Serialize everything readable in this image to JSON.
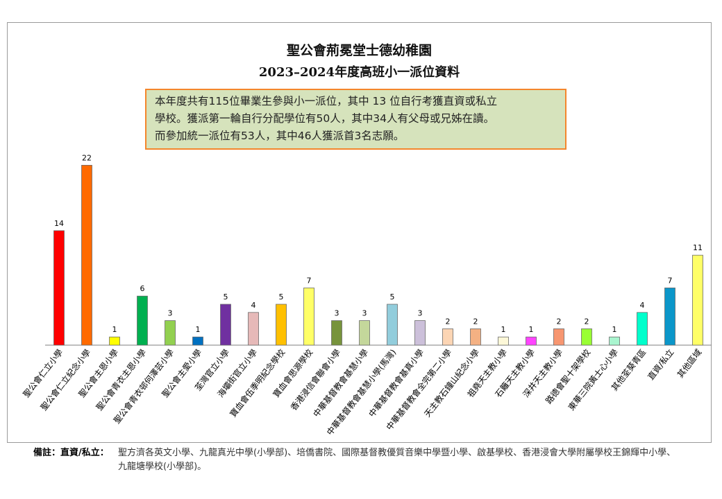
{
  "title_line1": "聖公會荊冕堂士德幼稚園",
  "title_line2": "2023–2024年度高班小一派位資料",
  "info_box": {
    "line1": "本年度共有115位畢業生參與小一派位，其中 13 位自行考獲直資或私立",
    "line2": "學校。獲派第一輪自行分配學位有50人，其中34人有父母或兄姊在讀。",
    "line3": "而參加統一派位有53人，其中46人獲派首3名志願。"
  },
  "note": {
    "label": "備註：直資/私立：",
    "line1": "聖方濟各英文小學、九龍真光中學(小學部)、培僑書院、國際基督教優質音樂中學暨小學、啟基學校、香港浸會大學附屬學校王錦輝中小學、",
    "line2": "九龍塘學校(小學部)。"
  },
  "chart_data": {
    "type": "bar",
    "categories": [
      "聖公會仁立小學",
      "聖公會仁立紀念小學",
      "聖公會主恩小學",
      "聖公會青衣主恩小學",
      "聖公會青衣邨何澤芸小學",
      "聖公會主愛小學",
      "荃灣官立小學",
      "海壩街官立小學",
      "寶血會伍季明紀念學校",
      "寶血會思源學校",
      "香港浸信會聯會小學",
      "中華基督教會基慧小學",
      "中華基督教會基慧小學(馬灣)",
      "中華基督教會基真小學",
      "中華基督教會全完第二小學",
      "天主教石鐘山紀念小學",
      "祖堯天主教小學",
      "石籬天主教小學",
      "深井天主教小學",
      "路德會聖十架學校",
      "東華三院黃士心小學",
      "其他荃葵青區",
      "直資/私立",
      "其他區域"
    ],
    "values": [
      14,
      22,
      1,
      6,
      3,
      1,
      5,
      4,
      5,
      7,
      3,
      3,
      5,
      3,
      2,
      2,
      1,
      1,
      2,
      2,
      1,
      4,
      7,
      11
    ],
    "colors": [
      "#ff0000",
      "#ff6a00",
      "#ffff00",
      "#00b050",
      "#92d050",
      "#0070c0",
      "#7030a0",
      "#e6b9b8",
      "#ffc000",
      "#ffff66",
      "#77933c",
      "#c4d79b",
      "#92cddc",
      "#ccc0da",
      "#fcd5b4",
      "#f4b183",
      "#fdf8d8",
      "#ff44ff",
      "#f79670",
      "#99ff33",
      "#a9f5cf",
      "#00ffcc",
      "#0b96c9",
      "#ffff66"
    ],
    "ylim": [
      0,
      24
    ]
  }
}
